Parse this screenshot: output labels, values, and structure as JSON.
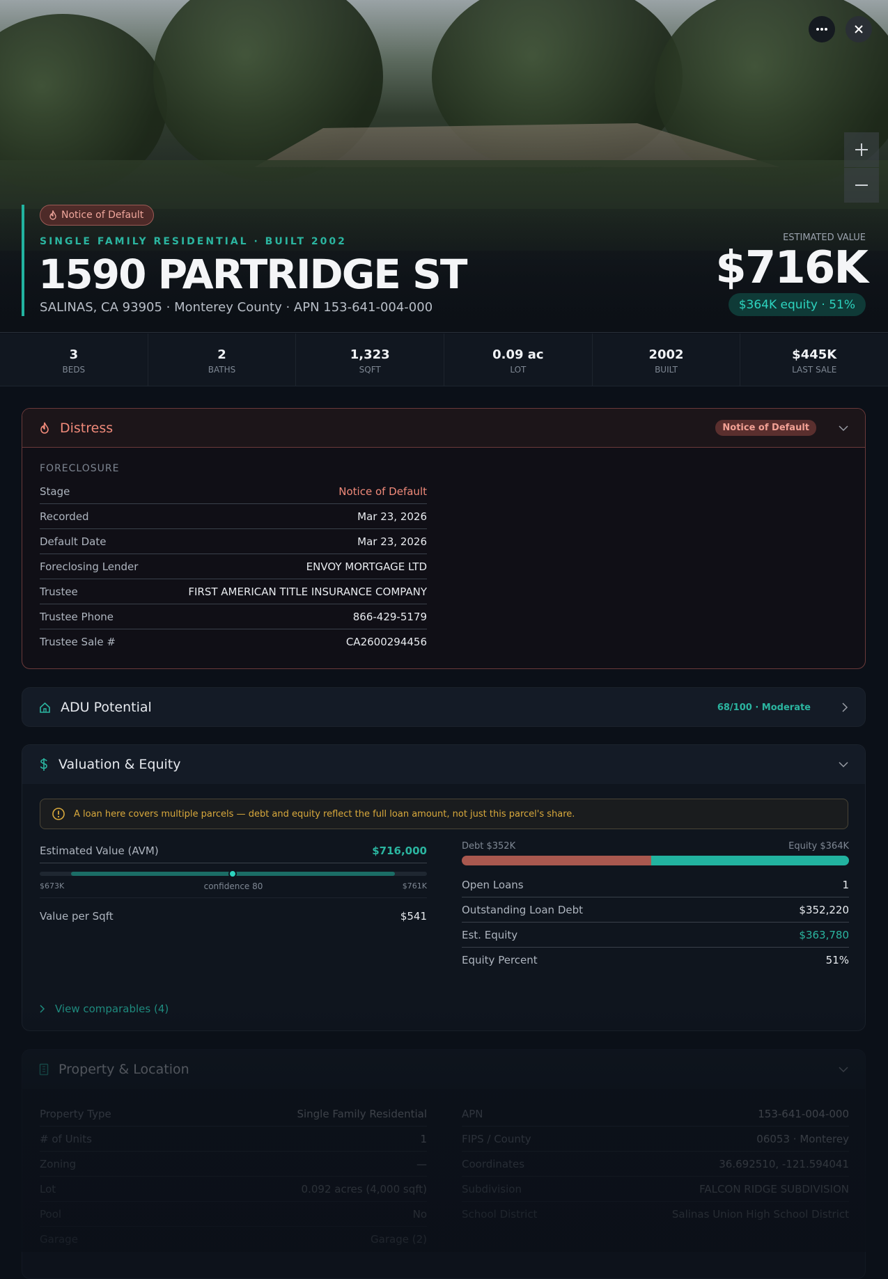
{
  "hero": {
    "badge": "Notice of Default",
    "subtitle": "SINGLE FAMILY RESIDENTIAL · BUILT 2002",
    "address": "1590 PARTRIDGE ST",
    "location": "SALINAS, CA 93905 · Monterey County · APN 153-641-004-000",
    "value_label": "ESTIMATED VALUE",
    "value": "$716K",
    "equity": "$364K equity · 51%"
  },
  "stats": [
    {
      "value": "3",
      "label": "BEDS"
    },
    {
      "value": "2",
      "label": "BATHS"
    },
    {
      "value": "1,323",
      "label": "SQFT"
    },
    {
      "value": "0.09 ac",
      "label": "LOT"
    },
    {
      "value": "2002",
      "label": "BUILT"
    },
    {
      "value": "$445K",
      "label": "LAST SALE"
    }
  ],
  "distress": {
    "title": "Distress",
    "badge": "Notice of Default",
    "section": "FORECLOSURE",
    "rows": [
      [
        "Stage",
        "Notice of Default"
      ],
      [
        "Recorded",
        "Mar 23, 2026"
      ],
      [
        "Default Date",
        "Mar 23, 2026"
      ],
      [
        "Foreclosing Lender",
        "ENVOY MORTGAGE LTD"
      ],
      [
        "Trustee",
        "FIRST AMERICAN TITLE INSURANCE COMPANY"
      ],
      [
        "Trustee Phone",
        "866-429-5179"
      ],
      [
        "Trustee Sale #",
        "CA2600294456"
      ]
    ]
  },
  "adu": {
    "title": "ADU Potential",
    "score": "68/100 · Moderate"
  },
  "valuation": {
    "title": "Valuation & Equity",
    "warning": "A loan here covers multiple parcels — debt and equity reflect the full loan amount, not just this parcel's share.",
    "avm_label": "Estimated Value (AVM)",
    "avm_value": "$716,000",
    "range_low": "$673K",
    "confidence": "confidence 80",
    "range_high": "$761K",
    "left_rows": [
      [
        "Value per Sqft",
        "$541"
      ]
    ],
    "debt_label": "Debt $352K",
    "equity_label": "Equity $364K",
    "right_rows": [
      [
        "Open Loans",
        "1"
      ],
      [
        "Outstanding Loan Debt",
        "$352,220"
      ],
      [
        "Est. Equity",
        "$363,780"
      ],
      [
        "Equity Percent",
        "51%"
      ]
    ],
    "comparables": "View comparables (4)"
  },
  "property": {
    "title": "Property & Location",
    "left_rows": [
      [
        "Property Type",
        "Single Family Residential"
      ],
      [
        "# of Units",
        "1"
      ],
      [
        "Zoning",
        "—"
      ],
      [
        "Lot",
        "0.092 acres (4,000 sqft)"
      ],
      [
        "Pool",
        "No"
      ],
      [
        "Garage",
        "Garage (2)"
      ]
    ],
    "right_rows": [
      [
        "APN",
        "153-641-004-000"
      ],
      [
        "FIPS / County",
        "06053 · Monterey"
      ],
      [
        "Coordinates",
        "36.692510, -121.594041"
      ],
      [
        "Subdivision",
        "FALCON RIDGE SUBDIVISION"
      ],
      [
        "School District",
        "Salinas Union High School District"
      ]
    ]
  }
}
